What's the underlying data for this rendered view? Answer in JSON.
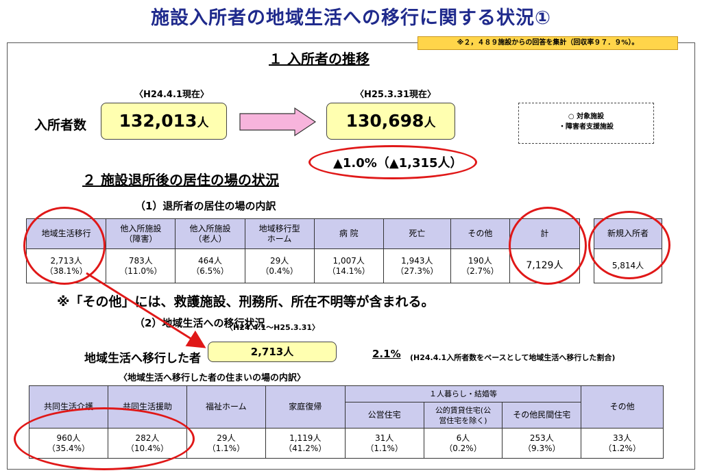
{
  "title": "施設入所者の地域生活への移行に関する状況①",
  "note": "※２，４８９施設からの回答を集計（回収率９７．９%）。",
  "section1": {
    "heading": "１  入所者の推移",
    "count_label": "入所者数",
    "before": {
      "date": "〈H24.4.1現在〉",
      "value": "132,013",
      "unit": "人"
    },
    "after": {
      "date": "〈H25.3.31現在〉",
      "value": "130,698",
      "unit": "人"
    },
    "change": "▲1.0%（▲1,315人）",
    "target_line1": "○  対象施設",
    "target_line2": "・障害者支援施設"
  },
  "section2": {
    "heading": "２  施設退所後の居住の場の状況",
    "sub1": "（1）退所者の居住の場の内訳",
    "table1": {
      "headers": [
        "地域生活移行",
        "他入所施設\n（障害）",
        "他入所施設\n（老人）",
        "地域移行型\nホーム",
        "病  院",
        "死亡",
        "その他",
        "計"
      ],
      "values": [
        "2,713人\n（38.1%）",
        "783人\n（11.0%）",
        "464人\n（6.5%）",
        "29人\n（0.4%）",
        "1,007人\n（14.1%）",
        "1,943人\n（27.3%）",
        "190人\n（2.7%）",
        "7,129人"
      ]
    },
    "new_admission": {
      "header": "新規入所者",
      "value": "5,814人"
    },
    "remark": "※「その他」には、救護施設、刑務所、所在不明等が含まれる。",
    "sub2": "（2）地域生活への移行状況",
    "period": "〈H24.4.1～H25.3.31〉",
    "move_label": "地域生活へ移行した者",
    "move_value": "2,713人",
    "rate": "2.1%",
    "rate_note": "(H24.4.1入所者数をベースとして地域生活へ移行した割合)",
    "sub3": "〈地域生活へ移行した者の住まいの場の内訳〉",
    "table2": {
      "group_header": "１人暮らし・結婚等",
      "headers": [
        "共同生活介護",
        "共同生活援助",
        "福祉ホーム",
        "家庭復帰",
        "公営住宅",
        "公的賃貸住宅(公\n営住宅を除く)",
        "その他民間住宅",
        "その他"
      ],
      "values": [
        "960人\n（35.4%）",
        "282人\n（10.4%）",
        "29人\n（1.1%）",
        "1,119人\n（41.2%）",
        "31人\n（1.1%）",
        "6人\n（0.2%）",
        "253人\n（9.3%）",
        "33人\n（1.2%）"
      ]
    }
  },
  "colors": {
    "title": "#1f2a8c",
    "header_bg": "#ccccee",
    "highlight_box": "#ffffb0",
    "note_bg": "#ffd54a",
    "circle": "#e01818",
    "arrow_fill": "#f7b4dc"
  }
}
